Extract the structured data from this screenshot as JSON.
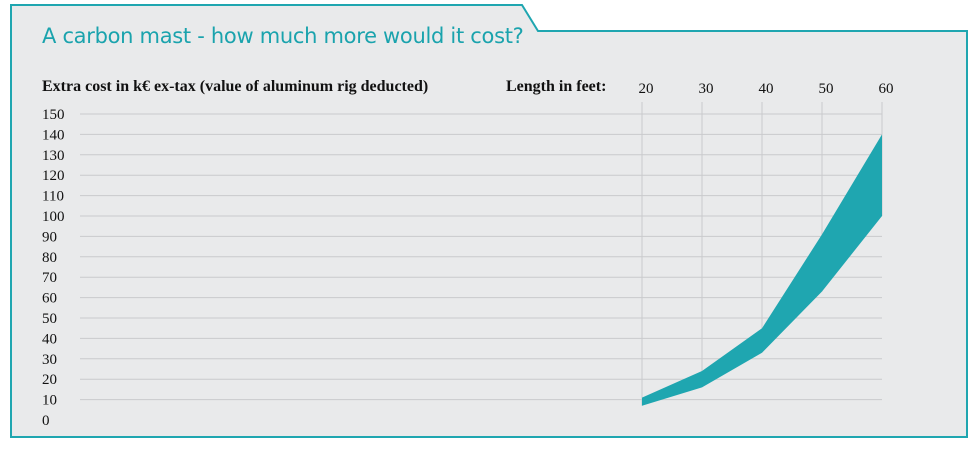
{
  "chart_data": {
    "type": "area",
    "title": "A carbon mast - how much more would it cost?",
    "ylabel": "Extra cost in k€ ex-tax (value of aluminum rig deducted)",
    "xlabel": "Length in feet:",
    "x": [
      20,
      30,
      40,
      50,
      60
    ],
    "x_tick_labels": [
      "20",
      "30",
      "40",
      "50",
      "60"
    ],
    "y_tick_labels": [
      "150",
      "140",
      "130",
      "120",
      "110",
      "100",
      "90",
      "80",
      "70",
      "60",
      "50",
      "40",
      "30",
      "20",
      "10",
      "0"
    ],
    "ylim": [
      0,
      150
    ],
    "series": [
      {
        "values_low": [
          7,
          16,
          33,
          63,
          100
        ],
        "values_high": [
          11,
          24,
          45,
          91,
          140
        ]
      }
    ],
    "grid": true,
    "colors": {
      "band": "#1fa6b0",
      "grid": "#c9cacc",
      "frame": "#1fa6b0",
      "panel": "#e9eaeb",
      "title": "#1aa3ad"
    }
  }
}
